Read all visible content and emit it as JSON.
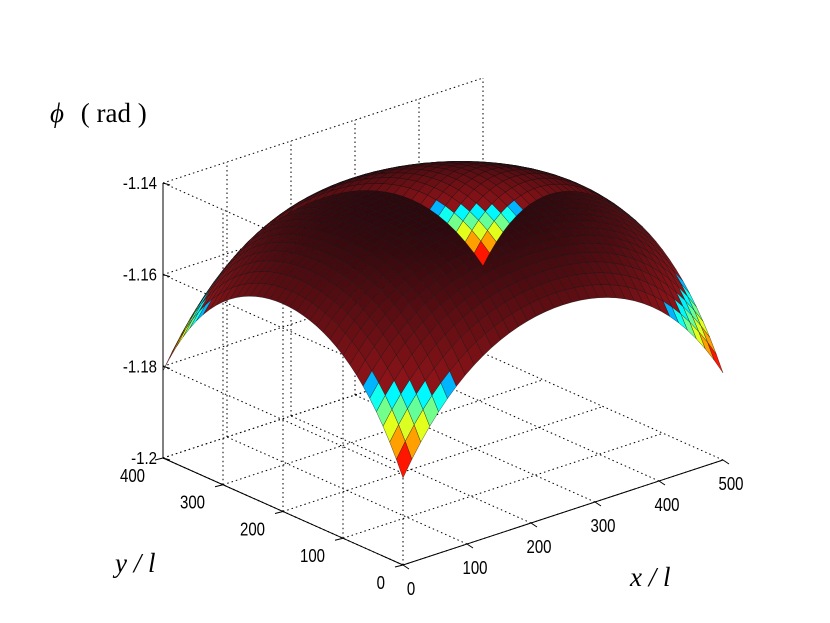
{
  "chart_data": {
    "type": "surface",
    "zlabel_symbol": "ϕ",
    "zlabel_unit": "( rad )",
    "xlabel": "x / l",
    "ylabel": "y / l",
    "xlim": [
      0,
      500
    ],
    "ylim": [
      0,
      400
    ],
    "zlim": [
      -1.2,
      -1.14
    ],
    "x_ticks": [
      "0",
      "100",
      "200",
      "300",
      "400",
      "500"
    ],
    "y_ticks": [
      "0",
      "100",
      "200",
      "300",
      "400"
    ],
    "z_ticks": [
      "-1.14",
      "-1.16",
      "-1.18",
      "-1.2"
    ],
    "grid": true,
    "colormap": "jet",
    "surface_max_z": -1.143,
    "surface_corner_z": -1.181
  }
}
